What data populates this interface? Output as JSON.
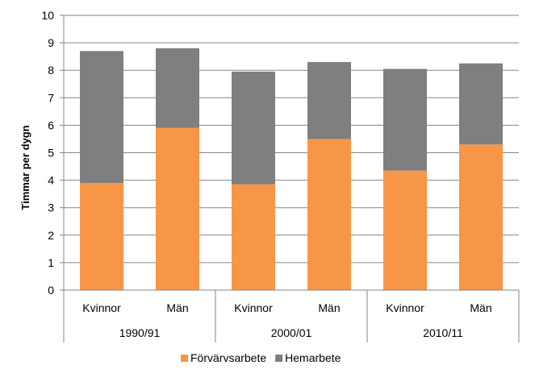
{
  "chart_data": {
    "type": "bar",
    "stacked": true,
    "title": "",
    "ylabel": "Timmar per dygn",
    "ylim": [
      0,
      10
    ],
    "yticks": [
      0,
      1,
      2,
      3,
      4,
      5,
      6,
      7,
      8,
      9,
      10
    ],
    "grid": true,
    "legend_position": "bottom",
    "groups": [
      {
        "label": "1990/91",
        "categories": [
          "Kvinnor",
          "Män"
        ]
      },
      {
        "label": "2000/01",
        "categories": [
          "Kvinnor",
          "Män"
        ]
      },
      {
        "label": "2010/11",
        "categories": [
          "Kvinnor",
          "Män"
        ]
      }
    ],
    "categories": [
      "Kvinnor",
      "Män",
      "Kvinnor",
      "Män",
      "Kvinnor",
      "Män"
    ],
    "series": [
      {
        "name": "Förvärvsarbete",
        "color": "#f79646",
        "values": [
          3.9,
          5.9,
          3.85,
          5.5,
          4.35,
          5.3
        ]
      },
      {
        "name": "Hemarbete",
        "color": "#7f7f7f",
        "values": [
          4.8,
          2.9,
          4.1,
          2.8,
          3.7,
          2.95
        ]
      }
    ]
  }
}
